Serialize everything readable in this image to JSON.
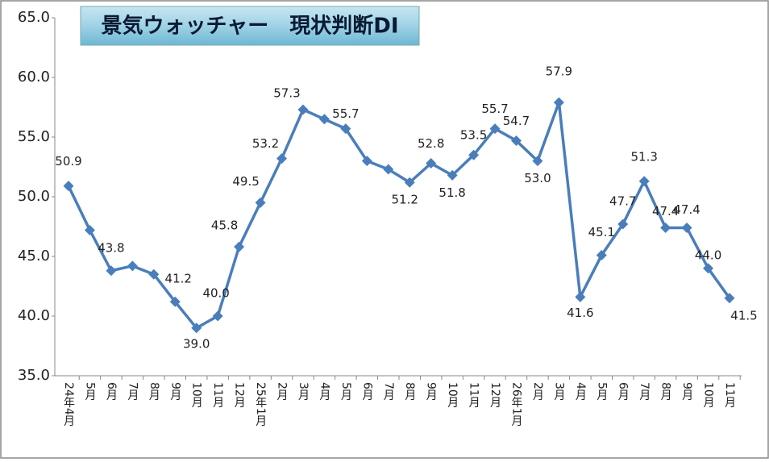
{
  "chart_data": {
    "type": "line",
    "title": "景気ウォッチャー　現状判断DI",
    "categories": [
      "24年4月",
      "5月",
      "6月",
      "7月",
      "8月",
      "9月",
      "10月",
      "11月",
      "12月",
      "25年1月",
      "2月",
      "3月",
      "4月",
      "5月",
      "6月",
      "7月",
      "8月",
      "9月",
      "10月",
      "11月",
      "12月",
      "26年1月",
      "2月",
      "3月",
      "4月",
      "5月",
      "6月",
      "7月",
      "8月",
      "9月",
      "10月",
      "11月"
    ],
    "series": [
      {
        "name": "現状判断DI",
        "color": "#4a7ebb",
        "values": [
          50.9,
          47.2,
          43.8,
          44.2,
          43.5,
          41.2,
          39.0,
          40.0,
          45.8,
          49.5,
          53.2,
          57.3,
          56.5,
          55.7,
          53.0,
          52.3,
          51.2,
          52.8,
          51.8,
          53.5,
          55.7,
          54.7,
          53.0,
          57.9,
          41.6,
          45.1,
          47.7,
          51.3,
          47.4,
          47.4,
          44.0,
          41.5
        ],
        "value_labels": [
          "50.9",
          null,
          "43.8",
          null,
          null,
          "41.2",
          "39.0",
          "40.0",
          "45.8",
          "49.5",
          "53.2",
          "57.3",
          null,
          "55.7",
          null,
          null,
          "51.2",
          "52.8",
          "51.8",
          "53.5",
          "55.7",
          "54.7",
          "53.0",
          "57.9",
          "41.6",
          "45.1",
          "47.7",
          "51.3",
          "47.4",
          "47.4",
          "44.0",
          "41.5"
        ]
      }
    ],
    "ylim": [
      35,
      65
    ],
    "yticks": [
      {
        "value": 35,
        "label": "35.0"
      },
      {
        "value": 40,
        "label": "40.0"
      },
      {
        "value": 45,
        "label": "45.0"
      },
      {
        "value": 50,
        "label": "50.0"
      },
      {
        "value": 55,
        "label": "55.0"
      },
      {
        "value": 60,
        "label": "60.0"
      },
      {
        "value": 65,
        "label": "65.0"
      }
    ],
    "grid": false
  }
}
